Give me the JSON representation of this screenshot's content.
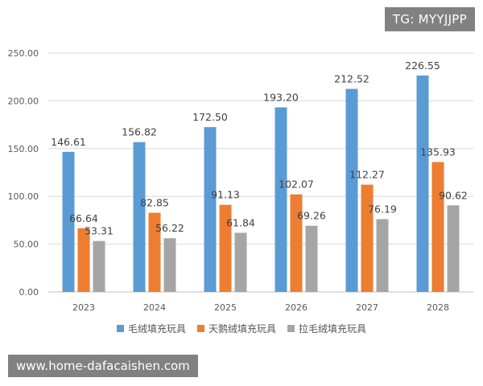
{
  "watermark_top": "TG: MYYJJPP",
  "watermark_bottom": "www.home-dafacaishen.com",
  "chart_data": {
    "type": "bar",
    "categories": [
      "2023",
      "2024",
      "2025",
      "2026",
      "2027",
      "2028"
    ],
    "series": [
      {
        "name": "毛绒填充玩具",
        "color": "#5B9BD5",
        "values": [
          146.61,
          156.82,
          172.5,
          193.2,
          212.52,
          226.55
        ]
      },
      {
        "name": "天鹅绒填充玩具",
        "color": "#ED7D31",
        "values": [
          66.64,
          82.85,
          91.13,
          102.07,
          112.27,
          135.93
        ]
      },
      {
        "name": "拉毛绒填充玩具",
        "color": "#A5A5A5",
        "values": [
          53.31,
          56.22,
          61.84,
          69.26,
          76.19,
          90.62
        ]
      }
    ],
    "value_labels": [
      [
        "146.61",
        "156.82",
        "172.50",
        "193.20",
        "212.52",
        "226.55"
      ],
      [
        "66.64",
        "82.85",
        "91.13",
        "102.07",
        "112.27",
        "135.93"
      ],
      [
        "53.31",
        "56.22",
        "61.84",
        "69.26",
        "76.19",
        "90.62"
      ]
    ],
    "y_ticks": [
      "0.00",
      "50.00",
      "100.00",
      "150.00",
      "200.00",
      "250.00"
    ],
    "ylim": [
      0,
      250
    ],
    "grid": true,
    "legend_position": "bottom"
  }
}
